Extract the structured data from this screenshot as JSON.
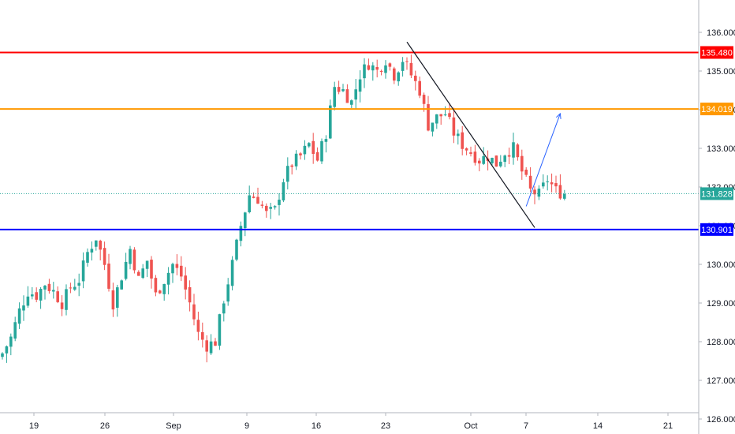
{
  "chart_data": {
    "type": "candlestick",
    "title": "",
    "xlabel": "",
    "ylabel": "",
    "ylim": [
      125.8,
      136.4
    ],
    "y_ticks": [
      "126.000",
      "127.000",
      "128.000",
      "129.000",
      "130.000",
      "131.000",
      "132.000",
      "133.000",
      "134.000",
      "135.000",
      "136.000"
    ],
    "x_ticks": [
      "19",
      "26",
      "Sep",
      "9",
      "16",
      "23",
      "Oct",
      "7",
      "14",
      "21"
    ],
    "grid": false,
    "price_levels": [
      {
        "label": "135.480",
        "value": 135.48,
        "color": "#ff0000"
      },
      {
        "label": "134.019",
        "value": 134.019,
        "color": "#ff9800"
      },
      {
        "label": "130.901",
        "value": 130.901,
        "color": "#0000ff"
      }
    ],
    "current_price": {
      "label": "131.828",
      "value": 131.828,
      "color": "#26a69a"
    },
    "trendline": {
      "from": {
        "bar": 95,
        "price": 135.75
      },
      "to": {
        "bar": 125,
        "price": 130.95
      },
      "color": "#131722"
    },
    "projection_arrow": {
      "from": {
        "bar": 123,
        "price": 131.5
      },
      "to": {
        "bar": 131,
        "price": 133.9
      },
      "color": "#2962ff"
    },
    "up_color": "#26a69a",
    "down_color": "#ef5350",
    "close_path": [
      [
        0,
        127.7
      ],
      [
        2,
        128.1
      ],
      [
        4,
        128.8
      ],
      [
        6,
        129.3
      ],
      [
        8,
        129.2
      ],
      [
        10,
        129.5
      ],
      [
        12,
        129.3
      ],
      [
        14,
        129.0
      ],
      [
        16,
        129.4
      ],
      [
        18,
        129.6
      ],
      [
        20,
        130.3
      ],
      [
        22,
        130.7
      ],
      [
        24,
        130.0
      ],
      [
        26,
        129.0
      ],
      [
        28,
        129.7
      ],
      [
        30,
        130.4
      ],
      [
        32,
        129.6
      ],
      [
        34,
        130.1
      ],
      [
        36,
        129.2
      ],
      [
        38,
        129.6
      ],
      [
        40,
        130.0
      ],
      [
        42,
        129.7
      ],
      [
        44,
        129.0
      ],
      [
        46,
        128.2
      ],
      [
        48,
        127.9
      ],
      [
        50,
        128.0
      ],
      [
        52,
        129.1
      ],
      [
        54,
        130.0
      ],
      [
        56,
        131.0
      ],
      [
        58,
        131.8
      ],
      [
        60,
        131.7
      ],
      [
        62,
        131.3
      ],
      [
        64,
        131.4
      ],
      [
        66,
        132.2
      ],
      [
        68,
        132.6
      ],
      [
        70,
        132.8
      ],
      [
        72,
        133.1
      ],
      [
        74,
        132.7
      ],
      [
        76,
        133.4
      ],
      [
        78,
        134.6
      ],
      [
        80,
        134.5
      ],
      [
        82,
        134.2
      ],
      [
        84,
        134.9
      ],
      [
        86,
        135.2
      ],
      [
        88,
        135.0
      ],
      [
        90,
        135.3
      ],
      [
        92,
        134.9
      ],
      [
        94,
        135.3
      ],
      [
        96,
        134.9
      ],
      [
        98,
        134.5
      ],
      [
        100,
        133.6
      ],
      [
        102,
        133.8
      ],
      [
        104,
        133.9
      ],
      [
        106,
        133.4
      ],
      [
        108,
        133.1
      ],
      [
        110,
        132.9
      ],
      [
        112,
        132.7
      ],
      [
        114,
        132.8
      ],
      [
        116,
        132.6
      ],
      [
        118,
        132.9
      ],
      [
        120,
        133.0
      ],
      [
        122,
        132.4
      ],
      [
        124,
        131.9
      ],
      [
        126,
        131.8
      ],
      [
        128,
        132.2
      ],
      [
        130,
        131.9
      ],
      [
        132,
        131.828
      ]
    ]
  }
}
